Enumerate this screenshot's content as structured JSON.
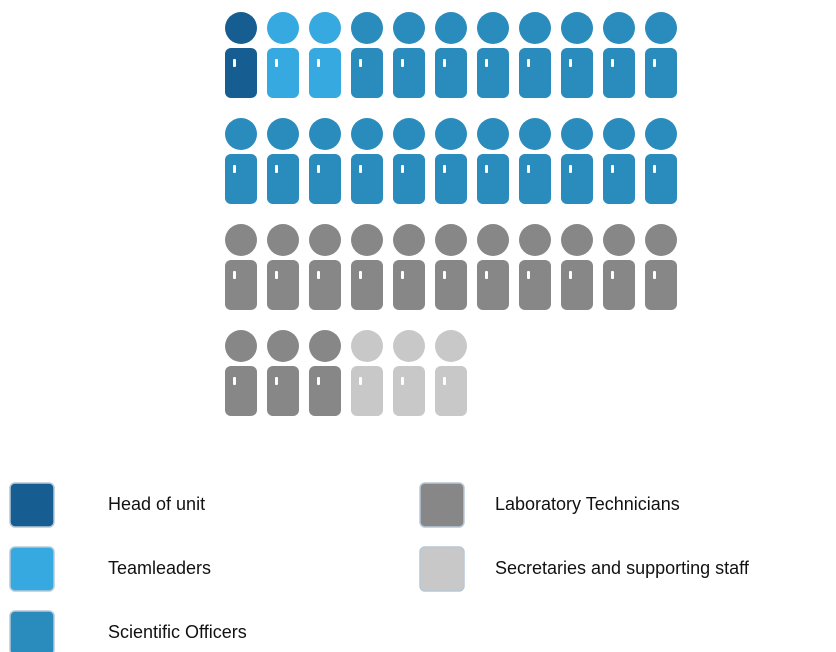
{
  "chart_data": {
    "type": "pictogram",
    "categories": [
      "Head of unit",
      "Teamleaders",
      "Scientific Officers",
      "Laboratory Technicians",
      "Secretaries and supporting staff"
    ],
    "values": [
      1,
      2,
      19,
      14,
      3
    ],
    "colors": [
      "#165e91",
      "#36a9e1",
      "#2a8bbd",
      "#878787",
      "#c8c8c8"
    ],
    "per_row": 11
  }
}
